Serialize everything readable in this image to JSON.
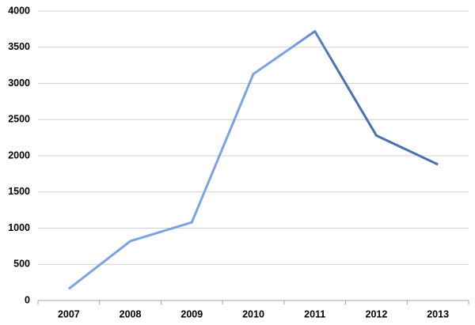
{
  "chart_data": {
    "type": "line",
    "categories": [
      "2007",
      "2008",
      "2009",
      "2010",
      "2011",
      "2012",
      "2013"
    ],
    "values": [
      160,
      820,
      1080,
      3130,
      3720,
      2280,
      1880
    ],
    "colors": [
      "#7ba3e0",
      "#4a70ae"
    ],
    "ylim": [
      0,
      4000
    ],
    "yticks": [
      0,
      500,
      1000,
      1500,
      2000,
      2500,
      3000,
      3500,
      4000
    ],
    "grid": true
  }
}
